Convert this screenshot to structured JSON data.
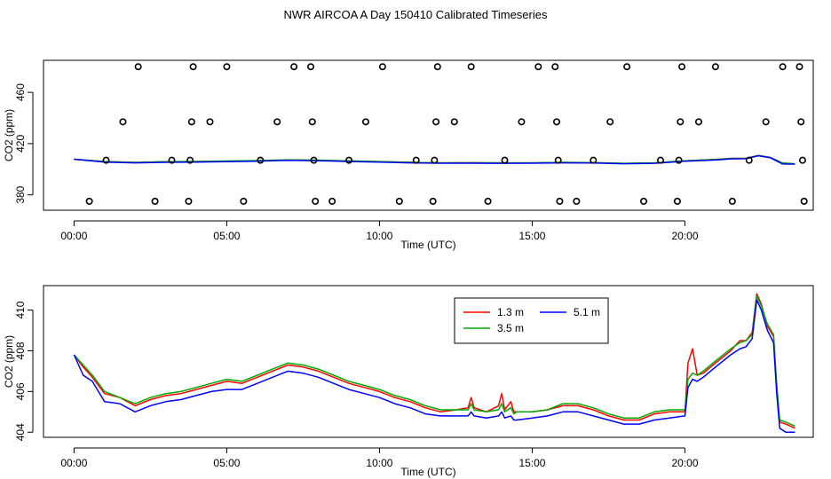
{
  "title": "NWR AIRCOA A  Day 150410  Calibrated Timeseries",
  "chart_data": [
    {
      "type": "line+scatter",
      "xlabel": "Time (UTC)",
      "ylabel": "CO2 (ppm)",
      "xlim": [
        -1.0,
        24.2
      ],
      "ylim": [
        368,
        485
      ],
      "x_ticks": [
        0,
        5,
        10,
        15,
        20
      ],
      "x_tick_labels": [
        "00:00",
        "05:00",
        "10:00",
        "15:00",
        "20:00"
      ],
      "y_ticks": [
        380,
        420,
        460
      ],
      "y_tick_labels": [
        "380",
        "420",
        "460"
      ],
      "scatter_levels": [
        375,
        407,
        437,
        480
      ],
      "scatter": [
        {
          "x": 0.5,
          "y": 375
        },
        {
          "x": 1.05,
          "y": 407
        },
        {
          "x": 1.6,
          "y": 437
        },
        {
          "x": 2.1,
          "y": 480
        },
        {
          "x": 2.65,
          "y": 375
        },
        {
          "x": 3.2,
          "y": 407
        },
        {
          "x": 3.75,
          "y": 375
        },
        {
          "x": 3.8,
          "y": 407
        },
        {
          "x": 3.85,
          "y": 437
        },
        {
          "x": 3.9,
          "y": 480
        },
        {
          "x": 4.45,
          "y": 437
        },
        {
          "x": 5.0,
          "y": 480
        },
        {
          "x": 5.55,
          "y": 375
        },
        {
          "x": 6.1,
          "y": 407
        },
        {
          "x": 6.65,
          "y": 437
        },
        {
          "x": 7.2,
          "y": 480
        },
        {
          "x": 7.75,
          "y": 480
        },
        {
          "x": 7.8,
          "y": 437
        },
        {
          "x": 7.85,
          "y": 407
        },
        {
          "x": 7.9,
          "y": 375
        },
        {
          "x": 8.45,
          "y": 375
        },
        {
          "x": 9.0,
          "y": 407
        },
        {
          "x": 9.55,
          "y": 437
        },
        {
          "x": 10.1,
          "y": 480
        },
        {
          "x": 10.65,
          "y": 375
        },
        {
          "x": 11.2,
          "y": 407
        },
        {
          "x": 11.75,
          "y": 375
        },
        {
          "x": 11.8,
          "y": 407
        },
        {
          "x": 11.85,
          "y": 437
        },
        {
          "x": 11.9,
          "y": 480
        },
        {
          "x": 12.45,
          "y": 437
        },
        {
          "x": 13.0,
          "y": 480
        },
        {
          "x": 13.55,
          "y": 375
        },
        {
          "x": 14.1,
          "y": 407
        },
        {
          "x": 14.65,
          "y": 437
        },
        {
          "x": 15.2,
          "y": 480
        },
        {
          "x": 15.75,
          "y": 480
        },
        {
          "x": 15.8,
          "y": 437
        },
        {
          "x": 15.85,
          "y": 407
        },
        {
          "x": 15.9,
          "y": 375
        },
        {
          "x": 16.45,
          "y": 375
        },
        {
          "x": 17.0,
          "y": 407
        },
        {
          "x": 17.55,
          "y": 437
        },
        {
          "x": 18.1,
          "y": 480
        },
        {
          "x": 18.65,
          "y": 375
        },
        {
          "x": 19.2,
          "y": 407
        },
        {
          "x": 19.75,
          "y": 375
        },
        {
          "x": 19.8,
          "y": 407
        },
        {
          "x": 19.85,
          "y": 437
        },
        {
          "x": 19.9,
          "y": 480
        },
        {
          "x": 20.45,
          "y": 437
        },
        {
          "x": 21.0,
          "y": 480
        },
        {
          "x": 21.55,
          "y": 375
        },
        {
          "x": 22.1,
          "y": 407
        },
        {
          "x": 22.65,
          "y": 437
        },
        {
          "x": 23.2,
          "y": 480
        },
        {
          "x": 23.75,
          "y": 480
        },
        {
          "x": 23.8,
          "y": 437
        },
        {
          "x": 23.85,
          "y": 407
        },
        {
          "x": 23.9,
          "y": 375
        }
      ],
      "series": [
        {
          "name": "1.3 m",
          "color": "#ff0000",
          "x": [
            0,
            1,
            2,
            3,
            4,
            5,
            6,
            7,
            8,
            9,
            10,
            11,
            12,
            13,
            14,
            15,
            16,
            17,
            18,
            19,
            20,
            21,
            21.5,
            22,
            22.4,
            22.8,
            23.2,
            23.6
          ],
          "y": [
            407.8,
            406,
            405.3,
            405.8,
            406,
            406.3,
            406.7,
            407.2,
            407,
            406.4,
            405.9,
            405.4,
            405,
            405.1,
            405,
            405,
            405.3,
            405.1,
            404.5,
            404.9,
            406.5,
            407.6,
            408.5,
            408.5,
            410.8,
            409.2,
            404.8,
            404.2
          ]
        },
        {
          "name": "3.5 m",
          "color": "#00aa00",
          "x": [
            0,
            1,
            2,
            3,
            4,
            5,
            6,
            7,
            8,
            9,
            10,
            11,
            12,
            13,
            14,
            15,
            16,
            17,
            18,
            19,
            20,
            21,
            21.5,
            22,
            22.4,
            22.8,
            23.2,
            23.6
          ],
          "y": [
            407.8,
            406,
            405.3,
            405.9,
            406.1,
            406.4,
            406.8,
            407.3,
            407.1,
            406.5,
            406,
            405.4,
            405,
            405,
            405,
            405,
            405.4,
            405.1,
            404.6,
            405,
            406.6,
            407.6,
            408.4,
            408.5,
            410.7,
            409.2,
            404.8,
            404.3
          ]
        },
        {
          "name": "5.1 m",
          "color": "#0000ff",
          "x": [
            0,
            1,
            2,
            3,
            4,
            5,
            6,
            7,
            8,
            9,
            10,
            11,
            12,
            13,
            14,
            15,
            16,
            17,
            18,
            19,
            20,
            21,
            21.5,
            22,
            22.4,
            22.8,
            23.2,
            23.6
          ],
          "y": [
            407.8,
            405.6,
            405,
            405.4,
            405.6,
            405.9,
            406.3,
            406.9,
            406.6,
            406,
            405.5,
            405,
            404.7,
            404.7,
            404.6,
            404.7,
            405,
            404.8,
            404.3,
            404.6,
            406.2,
            407.2,
            408.1,
            408.2,
            410.5,
            408.9,
            404.1,
            404
          ]
        }
      ]
    },
    {
      "type": "line",
      "xlabel": "Time (UTC)",
      "ylabel": "CO2 (ppm)",
      "xlim": [
        -1.0,
        24.2
      ],
      "ylim": [
        403.75,
        411.2
      ],
      "x_ticks": [
        0,
        5,
        10,
        15,
        20
      ],
      "x_tick_labels": [
        "00:00",
        "05:00",
        "10:00",
        "15:00",
        "20:00"
      ],
      "y_ticks": [
        404,
        406,
        408,
        410
      ],
      "y_tick_labels": [
        "404",
        "406",
        "408",
        "410"
      ],
      "legend": [
        "1.3 m",
        "3.5 m",
        "5.1 m"
      ],
      "series": [
        {
          "name": "1.3 m",
          "color": "#ff0000",
          "x": [
            0,
            0.3,
            0.6,
            0.8,
            1.0,
            1.5,
            2.0,
            2.5,
            3.0,
            3.5,
            4.0,
            4.5,
            5.0,
            5.5,
            6.0,
            6.5,
            7.0,
            7.5,
            8.0,
            8.5,
            9.0,
            9.5,
            10.0,
            10.5,
            11.0,
            11.5,
            12.0,
            12.5,
            12.9,
            13.0,
            13.1,
            13.5,
            13.9,
            14.0,
            14.1,
            14.3,
            14.4,
            14.5,
            15.0,
            15.5,
            16.0,
            16.5,
            17.0,
            17.5,
            18.0,
            18.5,
            19.0,
            19.5,
            20.0,
            20.1,
            20.25,
            20.4,
            20.6,
            21.0,
            21.5,
            21.8,
            22.0,
            22.2,
            22.35,
            22.5,
            22.7,
            22.9,
            23.0,
            23.1,
            23.3,
            23.6
          ],
          "y": [
            407.8,
            407.2,
            406.7,
            406.3,
            405.9,
            405.7,
            405.3,
            405.6,
            405.8,
            405.9,
            406.1,
            406.3,
            406.5,
            406.4,
            406.7,
            407,
            407.3,
            407.2,
            407,
            406.7,
            406.4,
            406.2,
            406,
            405.7,
            405.5,
            405.2,
            405,
            405.1,
            405.2,
            405.7,
            405.2,
            405,
            405.3,
            405.9,
            405.1,
            405.5,
            405,
            405,
            405,
            405.1,
            405.3,
            405.3,
            405.1,
            404.8,
            404.6,
            404.6,
            404.9,
            405,
            405,
            407.4,
            408.1,
            406.8,
            406.9,
            407.4,
            408,
            408.5,
            408.5,
            408.9,
            410.8,
            410.3,
            409.2,
            408.7,
            406.4,
            404.5,
            404.4,
            404.2
          ]
        },
        {
          "name": "3.5 m",
          "color": "#00aa00",
          "x": [
            0,
            0.3,
            0.6,
            0.8,
            1.0,
            1.5,
            2.0,
            2.5,
            3.0,
            3.5,
            4.0,
            4.5,
            5.0,
            5.5,
            6.0,
            6.5,
            7.0,
            7.5,
            8.0,
            8.5,
            9.0,
            9.5,
            10.0,
            10.5,
            11.0,
            11.5,
            12.0,
            12.5,
            12.9,
            13.0,
            13.1,
            13.5,
            13.9,
            14.0,
            14.1,
            14.3,
            14.4,
            14.5,
            15.0,
            15.5,
            16.0,
            16.5,
            17.0,
            17.5,
            18.0,
            18.5,
            19.0,
            19.5,
            20.0,
            20.1,
            20.25,
            20.4,
            20.6,
            21.0,
            21.5,
            21.8,
            22.0,
            22.2,
            22.35,
            22.5,
            22.7,
            22.9,
            23.0,
            23.1,
            23.3,
            23.6
          ],
          "y": [
            407.8,
            407.3,
            406.8,
            406.4,
            406,
            405.7,
            405.4,
            405.7,
            405.9,
            406,
            406.2,
            406.4,
            406.6,
            406.5,
            406.8,
            407.1,
            407.4,
            407.3,
            407.1,
            406.8,
            406.5,
            406.3,
            406.1,
            405.8,
            405.6,
            405.3,
            405.1,
            405.1,
            405.1,
            405.4,
            405.1,
            405,
            405.1,
            405.4,
            405,
            405.2,
            404.9,
            405,
            405,
            405.1,
            405.4,
            405.4,
            405.2,
            404.9,
            404.7,
            404.7,
            405,
            405.1,
            405.1,
            406.6,
            406.9,
            406.8,
            407,
            407.5,
            408.1,
            408.4,
            408.5,
            408.8,
            410.7,
            410.2,
            409.3,
            408.8,
            406.4,
            404.6,
            404.5,
            404.3
          ]
        },
        {
          "name": "5.1 m",
          "color": "#0000ff",
          "x": [
            0,
            0.3,
            0.6,
            0.8,
            1.0,
            1.5,
            2.0,
            2.5,
            3.0,
            3.5,
            4.0,
            4.5,
            5.0,
            5.5,
            6.0,
            6.5,
            7.0,
            7.5,
            8.0,
            8.5,
            9.0,
            9.5,
            10.0,
            10.5,
            11.0,
            11.5,
            12.0,
            12.5,
            12.9,
            13.0,
            13.1,
            13.5,
            13.9,
            14.0,
            14.1,
            14.3,
            14.4,
            14.5,
            15.0,
            15.5,
            16.0,
            16.5,
            17.0,
            17.5,
            18.0,
            18.5,
            19.0,
            19.5,
            20.0,
            20.1,
            20.25,
            20.4,
            20.6,
            21.0,
            21.5,
            21.8,
            22.0,
            22.2,
            22.35,
            22.5,
            22.7,
            22.9,
            23.0,
            23.1,
            23.3,
            23.6
          ],
          "y": [
            407.8,
            406.8,
            406.5,
            406,
            405.5,
            405.4,
            405,
            405.3,
            405.5,
            405.6,
            405.8,
            406,
            406.1,
            406.1,
            406.4,
            406.7,
            407,
            406.9,
            406.7,
            406.4,
            406.1,
            405.9,
            405.7,
            405.4,
            405.2,
            404.9,
            404.8,
            404.8,
            404.8,
            405,
            404.8,
            404.7,
            404.8,
            405,
            404.7,
            404.8,
            404.6,
            404.6,
            404.7,
            404.8,
            405,
            405,
            404.8,
            404.6,
            404.4,
            404.4,
            404.6,
            404.7,
            404.8,
            406.2,
            406.6,
            406.5,
            406.7,
            407.2,
            407.8,
            408.1,
            408.2,
            408.6,
            410.5,
            410,
            409,
            408.4,
            406,
            404.2,
            404,
            404
          ]
        }
      ]
    }
  ]
}
